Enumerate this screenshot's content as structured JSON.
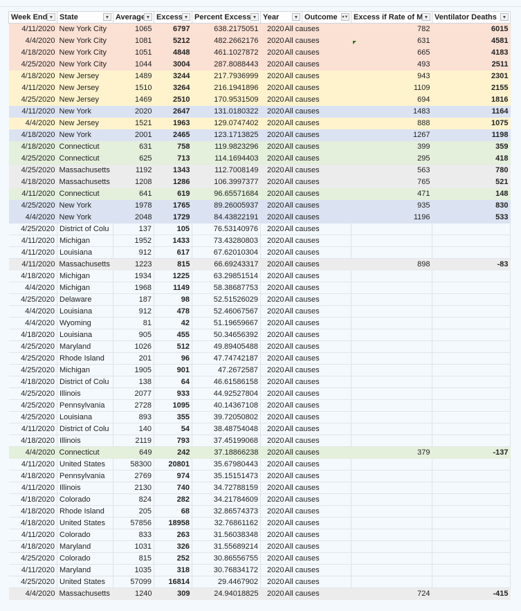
{
  "columns": [
    "Week End",
    "State",
    "Average",
    "Excess",
    "Percent Excess",
    "Year",
    "Outcome",
    "Excess if Rate of MI",
    "Ventilator Deaths"
  ],
  "filter_icons": [
    "dropdown-arrow",
    "dropdown-arrow",
    "dropdown-arrow",
    "dropdown-arrow",
    "dropdown-arrow",
    "dropdown-arrow",
    "filter-active",
    "dropdown-arrow",
    "dropdown-arrow"
  ],
  "highlight_colors": {
    "nyc": "#fbe0d4",
    "nj": "#fff3cd",
    "ny": "#dbe3f2",
    "ct": "#e4efdc",
    "ma": "#ececec",
    "none": ""
  },
  "rows": [
    [
      "4/11/2020",
      "New York City",
      "1065",
      "6797",
      "638.2175051",
      "2020",
      "All causes",
      "782",
      "6015",
      "nyc"
    ],
    [
      "4/4/2020",
      "New York City",
      "1081",
      "5212",
      "482.2662176",
      "2020",
      "All causes",
      "631",
      "4581",
      "nyc"
    ],
    [
      "4/18/2020",
      "New York City",
      "1051",
      "4848",
      "461.1027872",
      "2020",
      "All causes",
      "665",
      "4183",
      "nyc"
    ],
    [
      "4/25/2020",
      "New York City",
      "1044",
      "3004",
      "287.8088443",
      "2020",
      "All causes",
      "493",
      "2511",
      "nyc"
    ],
    [
      "4/18/2020",
      "New Jersey",
      "1489",
      "3244",
      "217.7936999",
      "2020",
      "All causes",
      "943",
      "2301",
      "nj"
    ],
    [
      "4/11/2020",
      "New Jersey",
      "1510",
      "3264",
      "216.1941896",
      "2020",
      "All causes",
      "1109",
      "2155",
      "nj"
    ],
    [
      "4/25/2020",
      "New Jersey",
      "1469",
      "2510",
      "170.9531509",
      "2020",
      "All causes",
      "694",
      "1816",
      "nj"
    ],
    [
      "4/11/2020",
      "New York",
      "2020",
      "2647",
      "131.0180322",
      "2020",
      "All causes",
      "1483",
      "1164",
      "ny"
    ],
    [
      "4/4/2020",
      "New Jersey",
      "1521",
      "1963",
      "129.0747402",
      "2020",
      "All causes",
      "888",
      "1075",
      "nj"
    ],
    [
      "4/18/2020",
      "New York",
      "2001",
      "2465",
      "123.1713825",
      "2020",
      "All causes",
      "1267",
      "1198",
      "ny"
    ],
    [
      "4/18/2020",
      "Connecticut",
      "631",
      "758",
      "119.9823296",
      "2020",
      "All causes",
      "399",
      "359",
      "ct"
    ],
    [
      "4/25/2020",
      "Connecticut",
      "625",
      "713",
      "114.1694403",
      "2020",
      "All causes",
      "295",
      "418",
      "ct"
    ],
    [
      "4/25/2020",
      "Massachusetts",
      "1192",
      "1343",
      "112.7008149",
      "2020",
      "All causes",
      "563",
      "780",
      "ma"
    ],
    [
      "4/18/2020",
      "Massachusetts",
      "1208",
      "1286",
      "106.3997377",
      "2020",
      "All causes",
      "765",
      "521",
      "ma"
    ],
    [
      "4/11/2020",
      "Connecticut",
      "641",
      "619",
      "96.65571684",
      "2020",
      "All causes",
      "471",
      "148",
      "ct"
    ],
    [
      "4/25/2020",
      "New York",
      "1978",
      "1765",
      "89.26005937",
      "2020",
      "All causes",
      "935",
      "830",
      "ny"
    ],
    [
      "4/4/2020",
      "New York",
      "2048",
      "1729",
      "84.43822191",
      "2020",
      "All causes",
      "1196",
      "533",
      "ny"
    ],
    [
      "4/25/2020",
      "District of Colu",
      "137",
      "105",
      "76.53140976",
      "2020",
      "All causes",
      "",
      "",
      "none"
    ],
    [
      "4/11/2020",
      "Michigan",
      "1952",
      "1433",
      "73.43280803",
      "2020",
      "All causes",
      "",
      "",
      "none"
    ],
    [
      "4/11/2020",
      "Louisiana",
      "912",
      "617",
      "67.62010304",
      "2020",
      "All causes",
      "",
      "",
      "none"
    ],
    [
      "4/11/2020",
      "Massachusetts",
      "1223",
      "815",
      "66.69243317",
      "2020",
      "All causes",
      "898",
      "-83",
      "ma"
    ],
    [
      "4/18/2020",
      "Michigan",
      "1934",
      "1225",
      "63.29851514",
      "2020",
      "All causes",
      "",
      "",
      "none"
    ],
    [
      "4/4/2020",
      "Michigan",
      "1968",
      "1149",
      "58.38687753",
      "2020",
      "All causes",
      "",
      "",
      "none"
    ],
    [
      "4/25/2020",
      "Delaware",
      "187",
      "98",
      "52.51526029",
      "2020",
      "All causes",
      "",
      "",
      "none"
    ],
    [
      "4/4/2020",
      "Louisiana",
      "912",
      "478",
      "52.46067567",
      "2020",
      "All causes",
      "",
      "",
      "none"
    ],
    [
      "4/4/2020",
      "Wyoming",
      "81",
      "42",
      "51.19659667",
      "2020",
      "All causes",
      "",
      "",
      "none"
    ],
    [
      "4/18/2020",
      "Louisiana",
      "905",
      "455",
      "50.34656392",
      "2020",
      "All causes",
      "",
      "",
      "none"
    ],
    [
      "4/25/2020",
      "Maryland",
      "1026",
      "512",
      "49.89405488",
      "2020",
      "All causes",
      "",
      "",
      "none"
    ],
    [
      "4/25/2020",
      "Rhode Island",
      "201",
      "96",
      "47.74742187",
      "2020",
      "All causes",
      "",
      "",
      "none"
    ],
    [
      "4/25/2020",
      "Michigan",
      "1905",
      "901",
      "47.2672587",
      "2020",
      "All causes",
      "",
      "",
      "none"
    ],
    [
      "4/18/2020",
      "District of Colu",
      "138",
      "64",
      "46.61586158",
      "2020",
      "All causes",
      "",
      "",
      "none"
    ],
    [
      "4/25/2020",
      "Illinois",
      "2077",
      "933",
      "44.92527804",
      "2020",
      "All causes",
      "",
      "",
      "none"
    ],
    [
      "4/25/2020",
      "Pennsylvania",
      "2728",
      "1095",
      "40.14367108",
      "2020",
      "All causes",
      "",
      "",
      "none"
    ],
    [
      "4/25/2020",
      "Louisiana",
      "893",
      "355",
      "39.72050802",
      "2020",
      "All causes",
      "",
      "",
      "none"
    ],
    [
      "4/11/2020",
      "District of Colu",
      "140",
      "54",
      "38.48754048",
      "2020",
      "All causes",
      "",
      "",
      "none"
    ],
    [
      "4/18/2020",
      "Illinois",
      "2119",
      "793",
      "37.45199068",
      "2020",
      "All causes",
      "",
      "",
      "none"
    ],
    [
      "4/4/2020",
      "Connecticut",
      "649",
      "242",
      "37.18866238",
      "2020",
      "All causes",
      "379",
      "-137",
      "ct"
    ],
    [
      "4/11/2020",
      "United States",
      "58300",
      "20801",
      "35.67980443",
      "2020",
      "All causes",
      "",
      "",
      "none"
    ],
    [
      "4/18/2020",
      "Pennsylvania",
      "2769",
      "974",
      "35.15151473",
      "2020",
      "All causes",
      "",
      "",
      "none"
    ],
    [
      "4/11/2020",
      "Illinois",
      "2130",
      "740",
      "34.72788159",
      "2020",
      "All causes",
      "",
      "",
      "none"
    ],
    [
      "4/18/2020",
      "Colorado",
      "824",
      "282",
      "34.21784609",
      "2020",
      "All causes",
      "",
      "",
      "none"
    ],
    [
      "4/18/2020",
      "Rhode Island",
      "205",
      "68",
      "32.86574373",
      "2020",
      "All causes",
      "",
      "",
      "none"
    ],
    [
      "4/18/2020",
      "United States",
      "57856",
      "18958",
      "32.76861162",
      "2020",
      "All causes",
      "",
      "",
      "none"
    ],
    [
      "4/11/2020",
      "Colorado",
      "833",
      "263",
      "31.56038348",
      "2020",
      "All causes",
      "",
      "",
      "none"
    ],
    [
      "4/18/2020",
      "Maryland",
      "1031",
      "326",
      "31.55689214",
      "2020",
      "All causes",
      "",
      "",
      "none"
    ],
    [
      "4/25/2020",
      "Colorado",
      "815",
      "252",
      "30.86556755",
      "2020",
      "All causes",
      "",
      "",
      "none"
    ],
    [
      "4/11/2020",
      "Maryland",
      "1035",
      "318",
      "30.76834172",
      "2020",
      "All causes",
      "",
      "",
      "none"
    ],
    [
      "4/25/2020",
      "United States",
      "57099",
      "16814",
      "29.4467902",
      "2020",
      "All causes",
      "",
      "",
      "none"
    ],
    [
      "4/4/2020",
      "Massachusetts",
      "1240",
      "309",
      "24.94018825",
      "2020",
      "All causes",
      "724",
      "-415",
      "ma"
    ]
  ]
}
